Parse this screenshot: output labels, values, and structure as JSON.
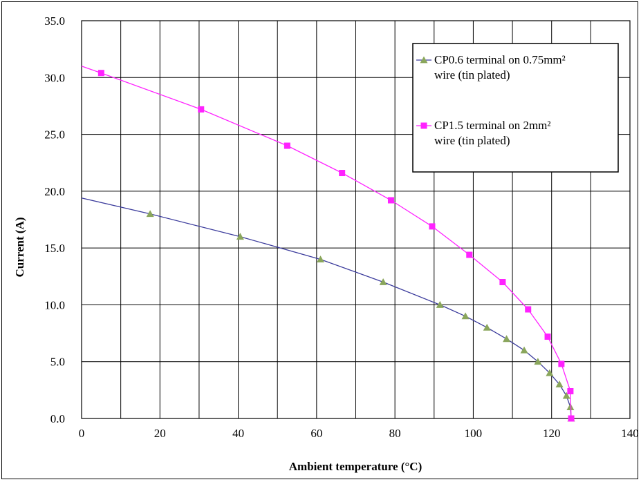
{
  "chart_data": {
    "type": "line",
    "title": "",
    "xlabel": "Ambient temperature (°C)",
    "ylabel": "Current (A)",
    "xlim": [
      0,
      140
    ],
    "ylim": [
      0,
      35
    ],
    "x_ticks": [
      "0",
      "20",
      "40",
      "60",
      "80",
      "100",
      "120",
      "140"
    ],
    "y_ticks": [
      "0.0",
      "5.0",
      "10.0",
      "15.0",
      "20.0",
      "25.0",
      "30.0",
      "35.0"
    ],
    "x_tick_values": [
      0,
      20,
      40,
      60,
      80,
      100,
      120,
      140
    ],
    "y_tick_values": [
      0,
      5,
      10,
      15,
      20,
      25,
      30,
      35
    ],
    "grid": true,
    "legend_position": "top-right",
    "series": [
      {
        "name_lines": [
          "CP0.6 terminal on 0.75mm²",
          "wire (tin plated)"
        ],
        "color": "#3b3b9c",
        "marker": "triangle",
        "marker_color": "#8aa65c",
        "line": [
          [
            0,
            19.4
          ],
          [
            17.5,
            18
          ],
          [
            40.5,
            16
          ],
          [
            61,
            14
          ],
          [
            77,
            12
          ],
          [
            91.5,
            10
          ],
          [
            98,
            9
          ],
          [
            103.5,
            8
          ],
          [
            108.5,
            7
          ],
          [
            113,
            6
          ],
          [
            116.5,
            5
          ],
          [
            119.5,
            4
          ],
          [
            122,
            3
          ],
          [
            123.8,
            2
          ],
          [
            124.8,
            1
          ],
          [
            125,
            0
          ]
        ],
        "points": [
          [
            17.5,
            18
          ],
          [
            40.5,
            16
          ],
          [
            61,
            14
          ],
          [
            77,
            12
          ],
          [
            91.5,
            10
          ],
          [
            98,
            9
          ],
          [
            103.5,
            8
          ],
          [
            108.5,
            7
          ],
          [
            113,
            6
          ],
          [
            116.5,
            5
          ],
          [
            119.5,
            4
          ],
          [
            122,
            3
          ],
          [
            123.8,
            2
          ],
          [
            124.8,
            1
          ],
          [
            125,
            0
          ]
        ]
      },
      {
        "name_lines": [
          "CP1.5 terminal on 2mm²",
          "wire (tin plated)"
        ],
        "color": "#ff22ff",
        "marker": "square",
        "marker_color": "#ff22ff",
        "line": [
          [
            0,
            31
          ],
          [
            5,
            30.4
          ],
          [
            30.5,
            27.2
          ],
          [
            52.5,
            24
          ],
          [
            66.5,
            21.6
          ],
          [
            79,
            19.2
          ],
          [
            89.5,
            16.9
          ],
          [
            99,
            14.4
          ],
          [
            107.5,
            12
          ],
          [
            114,
            9.6
          ],
          [
            119,
            7.2
          ],
          [
            122.5,
            4.8
          ],
          [
            124.8,
            2.4
          ],
          [
            125,
            0
          ]
        ],
        "points": [
          [
            5,
            30.4
          ],
          [
            30.5,
            27.2
          ],
          [
            52.5,
            24
          ],
          [
            66.5,
            21.6
          ],
          [
            79,
            19.2
          ],
          [
            89.5,
            16.9
          ],
          [
            99,
            14.4
          ],
          [
            107.5,
            12
          ],
          [
            114,
            9.6
          ],
          [
            119,
            7.2
          ],
          [
            122.5,
            4.8
          ],
          [
            124.8,
            2.4
          ],
          [
            125,
            0
          ]
        ]
      }
    ]
  }
}
